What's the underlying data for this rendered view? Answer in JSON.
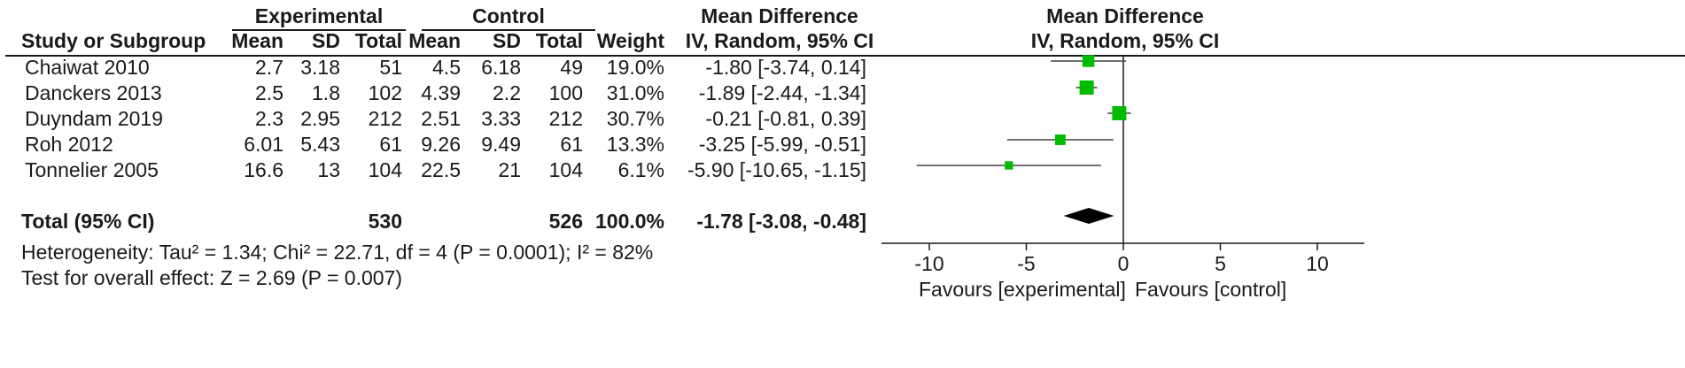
{
  "header": {
    "experimental_group": "Experimental",
    "control_group": "Control",
    "md_label": "Mean Difference",
    "md_method": "IV, Random, 95% CI",
    "plot_title": "Mean Difference",
    "plot_method": "IV, Random, 95% CI",
    "col_study": "Study or Subgroup",
    "col_exp_mean": "Mean",
    "col_exp_sd": "SD",
    "col_exp_total": "Total",
    "col_ctl_mean": "Mean",
    "col_ctl_sd": "SD",
    "col_ctl_total": "Total",
    "col_weight": "Weight"
  },
  "rows": [
    {
      "study": "Chaiwat 2010",
      "exp_mean": "2.7",
      "exp_sd": "3.18",
      "exp_total": "51",
      "ctl_mean": "4.5",
      "ctl_sd": "6.18",
      "ctl_total": "49",
      "weight": "19.0%",
      "ci_text": "-1.80 [-3.74, 0.14]"
    },
    {
      "study": "Danckers 2013",
      "exp_mean": "2.5",
      "exp_sd": "1.8",
      "exp_total": "102",
      "ctl_mean": "4.39",
      "ctl_sd": "2.2",
      "ctl_total": "100",
      "weight": "31.0%",
      "ci_text": "-1.89 [-2.44, -1.34]"
    },
    {
      "study": "Duyndam 2019",
      "exp_mean": "2.3",
      "exp_sd": "2.95",
      "exp_total": "212",
      "ctl_mean": "2.51",
      "ctl_sd": "3.33",
      "ctl_total": "212",
      "weight": "30.7%",
      "ci_text": "-0.21 [-0.81, 0.39]"
    },
    {
      "study": "Roh 2012",
      "exp_mean": "6.01",
      "exp_sd": "5.43",
      "exp_total": "61",
      "ctl_mean": "9.26",
      "ctl_sd": "9.49",
      "ctl_total": "61",
      "weight": "13.3%",
      "ci_text": "-3.25 [-5.99, -0.51]"
    },
    {
      "study": "Tonnelier 2005",
      "exp_mean": "16.6",
      "exp_sd": "13",
      "exp_total": "104",
      "ctl_mean": "22.5",
      "ctl_sd": "21",
      "ctl_total": "104",
      "weight": "6.1%",
      "ci_text": "-5.90 [-10.65, -1.15]"
    }
  ],
  "total": {
    "label": "Total (95% CI)",
    "exp_total": "530",
    "ctl_total": "526",
    "weight": "100.0%",
    "ci_text": "-1.78 [-3.08, -0.48]"
  },
  "heterogeneity": "Heterogeneity: Tau² = 1.34; Chi² = 22.71, df = 4 (P = 0.0001); I² = 82%",
  "overall_effect": "Test for overall effect: Z = 2.69 (P = 0.007)",
  "axis": {
    "favours_left": "Favours [experimental]",
    "favours_right": "Favours [control]"
  },
  "chart_data": {
    "type": "forest",
    "title": "Mean Difference",
    "xlabel": "",
    "xlim": [
      -12,
      12.5
    ],
    "ticks": [
      -10,
      -5,
      0,
      5,
      10
    ],
    "tick_labels": [
      "-10",
      "-5",
      "0",
      "5",
      "10"
    ],
    "studies": [
      {
        "name": "Chaiwat 2010",
        "md": -1.8,
        "lower": -3.74,
        "upper": 0.14,
        "weight": 19.0
      },
      {
        "name": "Danckers 2013",
        "md": -1.89,
        "lower": -2.44,
        "upper": -1.34,
        "weight": 31.0
      },
      {
        "name": "Duyndam 2019",
        "md": -0.21,
        "lower": -0.81,
        "upper": 0.39,
        "weight": 30.7
      },
      {
        "name": "Roh 2012",
        "md": -3.25,
        "lower": -5.99,
        "upper": -0.51,
        "weight": 13.3
      },
      {
        "name": "Tonnelier 2005",
        "md": -5.9,
        "lower": -10.65,
        "upper": -1.15,
        "weight": 6.1
      }
    ],
    "pooled": {
      "md": -1.78,
      "lower": -3.08,
      "upper": -0.48
    },
    "marker_color": "#00bb00",
    "diamond_color": "#000000"
  }
}
